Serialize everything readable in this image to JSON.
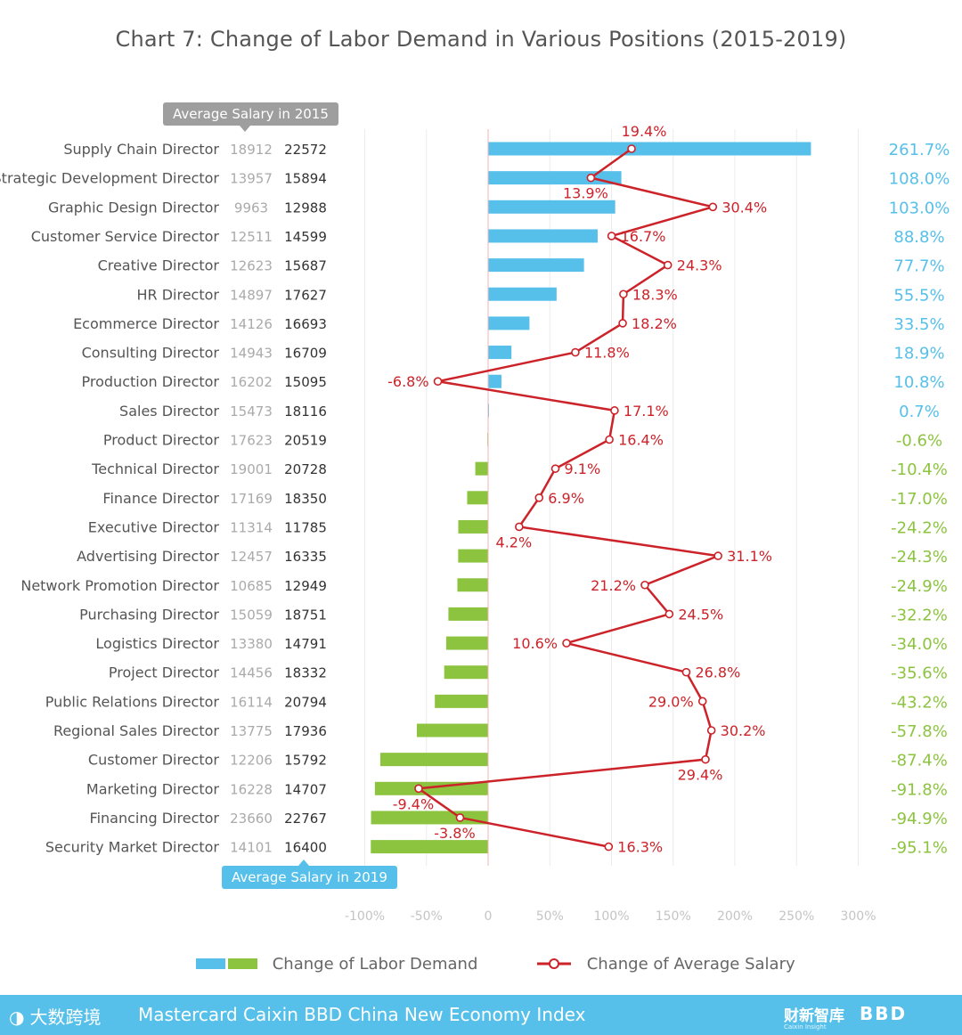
{
  "title": "Chart 7: Change of Labor Demand in Various Positions (2015-2019)",
  "callouts": {
    "salary_2015": "Average Salary in 2015",
    "salary_2019": "Average Salary in 2019"
  },
  "legend": {
    "demand": "Change of Labor Demand",
    "salary": "Change of Average Salary"
  },
  "footer": {
    "logo_text": "大数跨境",
    "index_name": "Mastercard Caixin BBD China New Economy Index",
    "brand_caixin": "财新智库",
    "brand_caixin_sub": "Caixin Insight",
    "brand_bbd": "BBD"
  },
  "colors": {
    "positive_bar": "#56c0ea",
    "negative_bar": "#8cc43f",
    "salary_line": "#cc2229",
    "salary_2015_text": "#aaaaaa",
    "salary_2019_text": "#333333",
    "grid": "#ececec",
    "footer_bg": "#56c0ea"
  },
  "chart_data": {
    "type": "bar",
    "title": "Chart 7: Change of Labor Demand in Various Positions (2015-2019)",
    "x_axis": {
      "ticks": [
        -100,
        -50,
        0,
        50,
        100,
        150,
        200,
        250,
        300
      ],
      "tick_labels": [
        "-100%",
        "-50%",
        "0",
        "50%",
        "100%",
        "150%",
        "200%",
        "250%",
        "300%"
      ],
      "range": [
        -100,
        300
      ]
    },
    "categories": [
      "Supply Chain Director",
      "Strategic Development Director",
      "Graphic Design Director",
      "Customer Service Director",
      "Creative Director",
      "HR Director",
      "Ecommerce Director",
      "Consulting Director",
      "Production Director",
      "Sales Director",
      "Product Director",
      "Technical Director",
      "Finance Director",
      "Executive Director",
      "Advertising Director",
      "Network Promotion Director",
      "Purchasing Director",
      "Logistics Director",
      "Project Director",
      "Public Relations Director",
      "Regional Sales Director",
      "Customer Director",
      "Marketing Director",
      "Financing Director",
      "Security Market Director"
    ],
    "salary_2015": [
      18912,
      13957,
      9963,
      12511,
      12623,
      14897,
      14126,
      14943,
      16202,
      15473,
      17623,
      19001,
      17169,
      11314,
      12457,
      10685,
      15059,
      13380,
      14456,
      16114,
      13775,
      12206,
      16228,
      23660,
      14101
    ],
    "salary_2019": [
      22572,
      15894,
      12988,
      14599,
      15687,
      17627,
      16693,
      16709,
      15095,
      18116,
      20519,
      20728,
      18350,
      11785,
      16335,
      12949,
      18751,
      14791,
      18332,
      20794,
      17936,
      15792,
      14707,
      22767,
      16400
    ],
    "series": [
      {
        "name": "Change of Labor Demand",
        "type": "bar",
        "values": [
          261.7,
          108.0,
          103.0,
          88.8,
          77.7,
          55.5,
          33.5,
          18.9,
          10.8,
          0.7,
          -0.6,
          -10.4,
          -17.0,
          -24.2,
          -24.3,
          -24.9,
          -32.2,
          -34.0,
          -35.6,
          -43.2,
          -57.8,
          -87.4,
          -91.8,
          -94.9,
          -95.1
        ],
        "labels": [
          "261.7%",
          "108.0%",
          "103.0%",
          "88.8%",
          "77.7%",
          "55.5%",
          "33.5%",
          "18.9%",
          "10.8%",
          "0.7%",
          "-0.6%",
          "-10.4%",
          "-17.0%",
          "-24.2%",
          "-24.3%",
          "-24.9%",
          "-32.2%",
          "-34.0%",
          "-35.6%",
          "-43.2%",
          "-57.8%",
          "-87.4%",
          "-91.8%",
          "-94.9%",
          "-95.1%"
        ]
      },
      {
        "name": "Change of Average Salary",
        "type": "line",
        "values": [
          19.4,
          13.9,
          30.4,
          16.7,
          24.3,
          18.3,
          18.2,
          11.8,
          -6.8,
          17.1,
          16.4,
          9.1,
          6.9,
          4.2,
          31.1,
          21.2,
          24.5,
          10.6,
          26.8,
          29.0,
          30.2,
          29.4,
          -9.4,
          -3.8,
          16.3
        ],
        "labels": [
          "19.4%",
          "13.9%",
          "30.4%",
          "16.7%",
          "24.3%",
          "18.3%",
          "18.2%",
          "11.8%",
          "-6.8%",
          "17.1%",
          "16.4%",
          "9.1%",
          "6.9%",
          "4.2%",
          "31.1%",
          "21.2%",
          "24.5%",
          "10.6%",
          "26.8%",
          "29.0%",
          "30.2%",
          "29.4%",
          "-9.4%",
          "-3.8%",
          "16.3%"
        ],
        "label_side": [
          "above",
          "below",
          "right",
          "right",
          "right",
          "right",
          "right",
          "right",
          "left",
          "right",
          "right",
          "right",
          "right",
          "below",
          "right",
          "left",
          "right",
          "left",
          "right",
          "left",
          "right",
          "below",
          "below",
          "below",
          "right"
        ]
      }
    ]
  }
}
